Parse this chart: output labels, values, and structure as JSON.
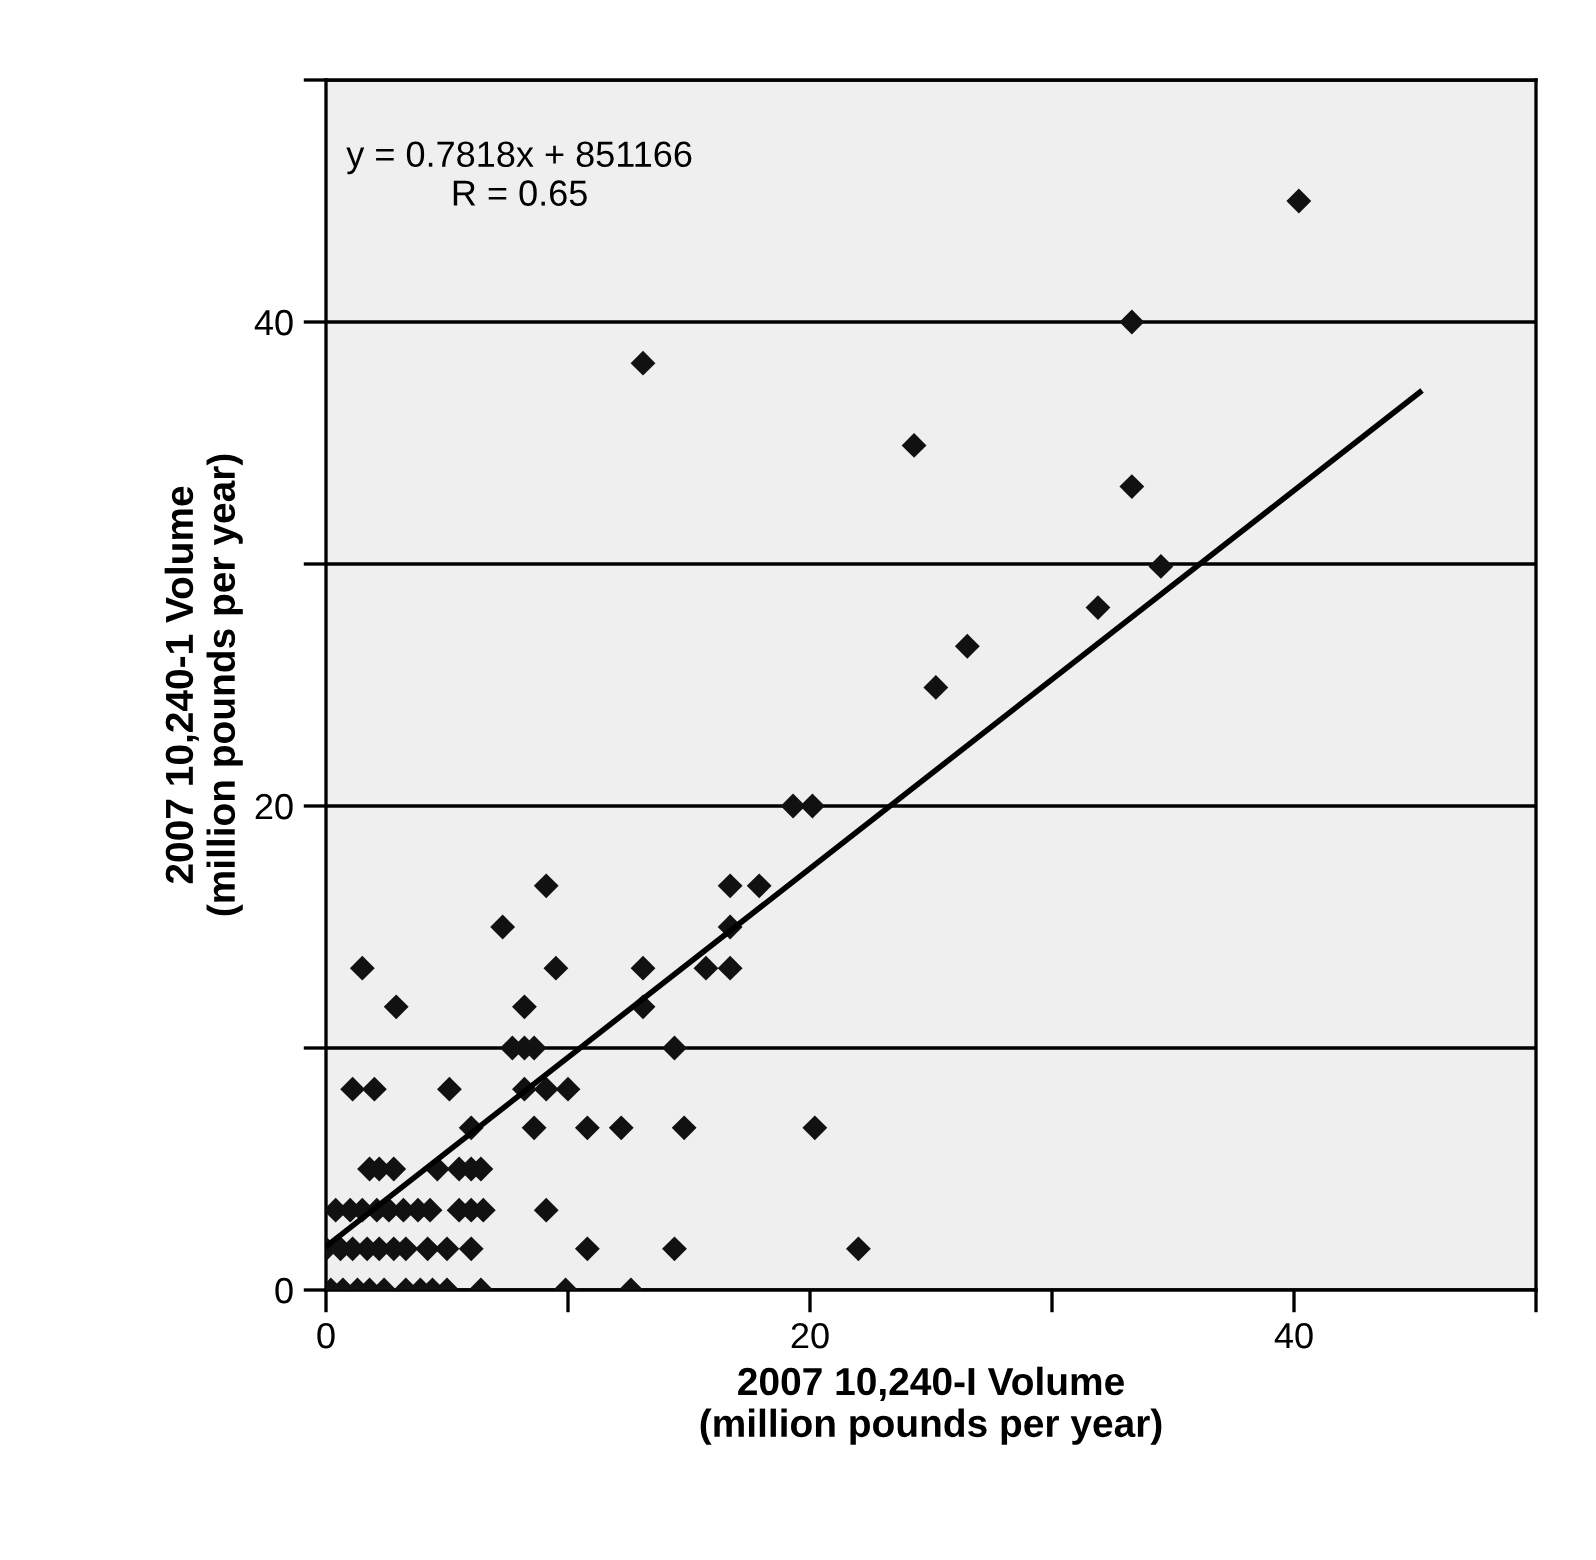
{
  "chart_data": {
    "type": "scatter",
    "xlabel": "2007 10,240-I Volume\n(million pounds per year)",
    "ylabel": "2007 10,240-1 Volume\n(million pounds per year)",
    "annotations": [
      "y = 0.7818x + 851166\nR = 0.65"
    ],
    "xlim": [
      0,
      50
    ],
    "ylim": [
      0,
      50
    ],
    "xticks": [
      0,
      {
        "value": 10,
        "label": null
      },
      20,
      {
        "value": 30,
        "label": null
      },
      40,
      {
        "value": 50,
        "label": null
      }
    ],
    "yticks": [
      0,
      {
        "value": 10,
        "label": null
      },
      20,
      {
        "value": 30,
        "label": null
      },
      40,
      {
        "value": 50,
        "label": null
      }
    ],
    "grid": "y",
    "series": [
      {
        "marker": "diamond",
        "color": "#111111",
        "x": [
          0.2,
          0.7,
          1.3,
          1.8,
          2.4,
          3.3,
          3.9,
          4.4,
          5.0,
          6.4,
          9.9,
          12.6,
          0.0,
          0.6,
          1.1,
          1.7,
          2.2,
          2.8,
          3.3,
          4.2,
          5.0,
          6.0,
          10.8,
          14.4,
          22.0,
          0.4,
          1.0,
          1.5,
          2.1,
          2.6,
          3.2,
          3.8,
          4.3,
          5.5,
          6.0,
          6.5,
          9.1,
          1.8,
          2.2,
          2.8,
          4.6,
          5.5,
          6.0,
          6.4,
          6.0,
          8.6,
          10.8,
          12.2,
          14.8,
          20.2,
          1.1,
          2.0,
          5.1,
          8.2,
          9.1,
          10.0,
          7.7,
          8.2,
          8.6,
          14.4,
          2.9,
          8.2,
          13.1,
          1.5,
          9.5,
          13.1,
          15.7,
          16.7,
          7.3,
          16.7,
          9.1,
          16.7,
          17.9,
          19.3,
          20.1,
          40.2,
          33.3,
          13.1,
          24.3,
          33.3,
          34.5,
          31.9,
          26.5,
          25.2
        ],
        "values": [
          0,
          0,
          0,
          0,
          0,
          0,
          0,
          0,
          0,
          0,
          0,
          0,
          1.7,
          1.7,
          1.7,
          1.7,
          1.7,
          1.7,
          1.7,
          1.7,
          1.7,
          1.7,
          1.7,
          1.7,
          1.7,
          3.3,
          3.3,
          3.3,
          3.3,
          3.3,
          3.3,
          3.3,
          3.3,
          3.3,
          3.3,
          3.3,
          3.3,
          5,
          5,
          5,
          5,
          5,
          5,
          5,
          6.7,
          6.7,
          6.7,
          6.7,
          6.7,
          6.7,
          8.3,
          8.3,
          8.3,
          8.3,
          8.3,
          8.3,
          10,
          10,
          10,
          10,
          11.7,
          11.7,
          11.7,
          13.3,
          13.3,
          13.3,
          13.3,
          13.3,
          15,
          15,
          16.7,
          16.7,
          16.7,
          20,
          20,
          45.0,
          40.0,
          38.3,
          34.9,
          33.2,
          29.9,
          28.2,
          26.6,
          24.9
        ]
      },
      {
        "type": "line",
        "marker": "none",
        "color": "#000000",
        "x": [
          0,
          45.2
        ],
        "values": [
          1.8,
          37.1
        ]
      }
    ]
  }
}
